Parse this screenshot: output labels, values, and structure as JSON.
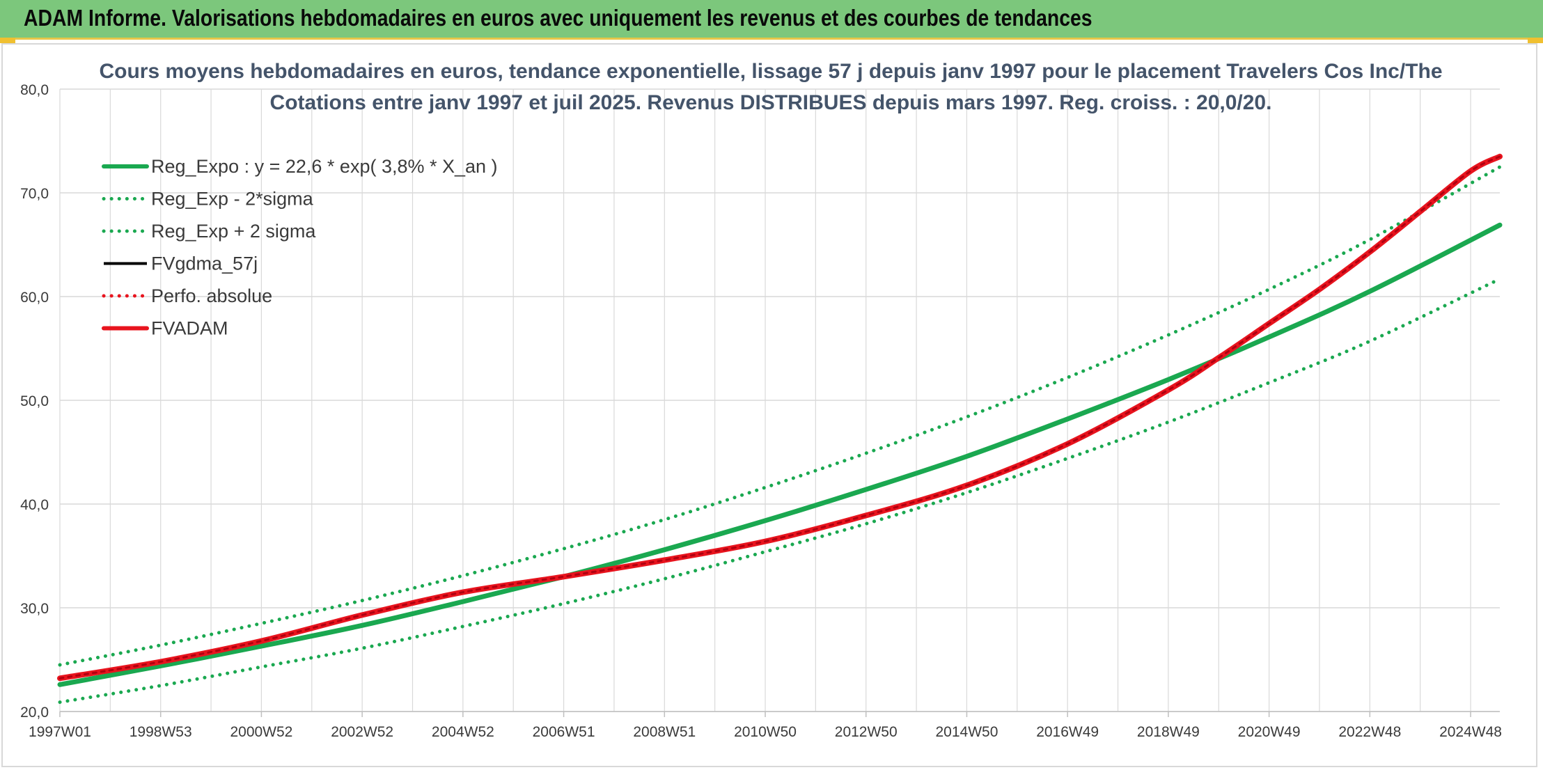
{
  "header": {
    "title": "ADAM Informe. Valorisations hebdomadaires en euros avec uniquement les revenus et des courbes de tendances"
  },
  "colors": {
    "header_bg": "#7cc77c",
    "trend_green": "#1aa850",
    "adam_red": "#e8141e",
    "black": "#000000",
    "grid": "#d9d9d9"
  },
  "chart_data": {
    "type": "line",
    "title_line1": "Cours moyens hebdomadaires en euros, tendance exponentielle, lissage 57 j depuis janv 1997 pour le placement Travelers Cos Inc/The",
    "title_line2": "Cotations entre janv 1997 et juil 2025. Revenus DISTRIBUES depuis mars 1997. Reg. croiss. : 20,0/20.",
    "xlabel": "",
    "ylabel": "",
    "ylim": [
      20,
      80
    ],
    "yticks": [
      "20,0",
      "30,0",
      "40,0",
      "50,0",
      "60,0",
      "70,0",
      "80,0"
    ],
    "xlim": [
      1997.0,
      2025.58
    ],
    "xticks": [
      {
        "label": "1997W01",
        "x": 1997.0
      },
      {
        "label": "1998W53",
        "x": 1999.0
      },
      {
        "label": "2000W52",
        "x": 2001.0
      },
      {
        "label": "2002W52",
        "x": 2003.0
      },
      {
        "label": "2004W52",
        "x": 2005.0
      },
      {
        "label": "2006W51",
        "x": 2007.0
      },
      {
        "label": "2008W51",
        "x": 2009.0
      },
      {
        "label": "2010W50",
        "x": 2011.0
      },
      {
        "label": "2012W50",
        "x": 2013.0
      },
      {
        "label": "2014W50",
        "x": 2015.0
      },
      {
        "label": "2016W49",
        "x": 2017.0
      },
      {
        "label": "2018W49",
        "x": 2019.0
      },
      {
        "label": "2020W49",
        "x": 2021.0
      },
      {
        "label": "2022W48",
        "x": 2023.0
      },
      {
        "label": "2024W48",
        "x": 2025.0
      }
    ],
    "grid": true,
    "legend_position": "top-left",
    "series": [
      {
        "name": "Reg_Expo : y = 22,6 * exp( 3,8% *  X_an )",
        "style": "solid-thick",
        "color": "#1aa850",
        "x": [
          1997,
          1999,
          2001,
          2003,
          2005,
          2007,
          2009,
          2011,
          2013,
          2015,
          2017,
          2019,
          2021,
          2023,
          2025.58
        ],
        "y": [
          22.6,
          24.4,
          26.3,
          28.3,
          30.6,
          33.0,
          35.6,
          38.4,
          41.4,
          44.6,
          48.2,
          52.0,
          56.1,
          60.5,
          66.9
        ]
      },
      {
        "name": "Reg_Exp - 2*sigma",
        "style": "dotted",
        "color": "#1aa850",
        "x": [
          1997,
          1999,
          2001,
          2003,
          2005,
          2007,
          2009,
          2011,
          2013,
          2015,
          2017,
          2019,
          2021,
          2023,
          2025.58
        ],
        "y": [
          20.9,
          22.5,
          24.3,
          26.1,
          28.2,
          30.4,
          32.8,
          35.4,
          38.1,
          41.1,
          44.4,
          47.9,
          51.7,
          55.7,
          61.7
        ]
      },
      {
        "name": "Reg_Exp + 2 sigma",
        "style": "dotted",
        "color": "#1aa850",
        "x": [
          1997,
          1999,
          2001,
          2003,
          2005,
          2007,
          2009,
          2011,
          2013,
          2015,
          2017,
          2019,
          2021,
          2023,
          2025.58
        ],
        "y": [
          24.5,
          26.4,
          28.5,
          30.7,
          33.1,
          35.7,
          38.5,
          41.6,
          44.9,
          48.4,
          52.2,
          56.3,
          60.7,
          65.5,
          72.5
        ]
      },
      {
        "name": "FVgdma_57j",
        "style": "solid",
        "color": "#000000",
        "x": [],
        "y": []
      },
      {
        "name": "Perfo. absolue",
        "style": "dotted",
        "color": "#e8141e",
        "x": [],
        "y": []
      },
      {
        "name": "FVADAM",
        "style": "solid-thick",
        "color": "#e8141e",
        "x": [
          1997,
          1999,
          2001,
          2003,
          2005,
          2007,
          2009,
          2011,
          2013,
          2015,
          2017,
          2019,
          2020,
          2021,
          2022,
          2023,
          2024,
          2025,
          2025.58
        ],
        "y": [
          23.2,
          24.8,
          26.8,
          29.3,
          31.5,
          33.0,
          34.6,
          36.4,
          38.9,
          41.8,
          45.8,
          51.0,
          54.1,
          57.4,
          60.7,
          64.3,
          68.2,
          72.1,
          73.5
        ]
      }
    ]
  }
}
